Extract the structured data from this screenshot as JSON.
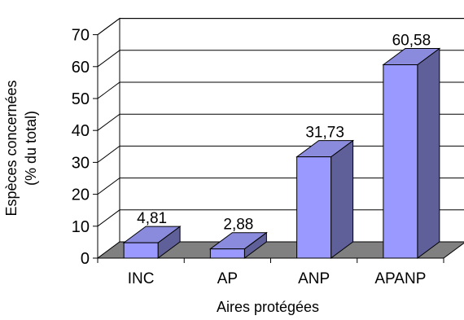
{
  "chart_data": {
    "type": "bar",
    "title": "",
    "xlabel": "Aires protégées",
    "ylabel_lines": [
      "Espèces concernées",
      "(% du total)"
    ],
    "categories": [
      "INC",
      "AP",
      "ANP",
      "APANP"
    ],
    "values": [
      4.81,
      2.88,
      31.73,
      60.58
    ],
    "value_labels": [
      "4,81",
      "2,88",
      "31,73",
      "60,58"
    ],
    "ylim": [
      0,
      70
    ],
    "yticks": [
      0,
      10,
      20,
      30,
      40,
      50,
      60,
      70
    ],
    "grid": true,
    "legend": "none",
    "colors": {
      "bar_front": "#9999ff",
      "bar_top": "#8b8bdd",
      "bar_side": "#5f5f99",
      "floor": "#808080",
      "wall": "#ffffff",
      "outline": "#000000"
    }
  }
}
